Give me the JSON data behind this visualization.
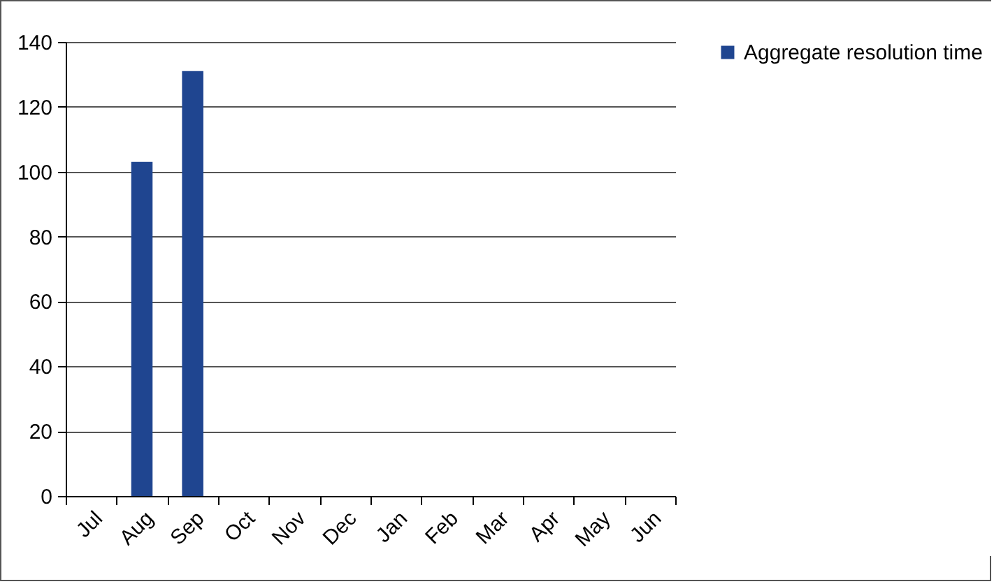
{
  "chart_data": {
    "type": "bar",
    "categories": [
      "Jul",
      "Aug",
      "Sep",
      "Oct",
      "Nov",
      "Dec",
      "Jan",
      "Feb",
      "Mar",
      "Apr",
      "May",
      "Jun"
    ],
    "series": [
      {
        "name": "Aggregate resolution time",
        "color": "#1f4590",
        "values": [
          null,
          103,
          131,
          null,
          null,
          null,
          null,
          null,
          null,
          null,
          null,
          null
        ]
      }
    ],
    "ylim": [
      0,
      140
    ],
    "yticks": [
      0,
      20,
      40,
      60,
      80,
      100,
      120,
      140
    ],
    "grid": "y",
    "legend": "right"
  }
}
